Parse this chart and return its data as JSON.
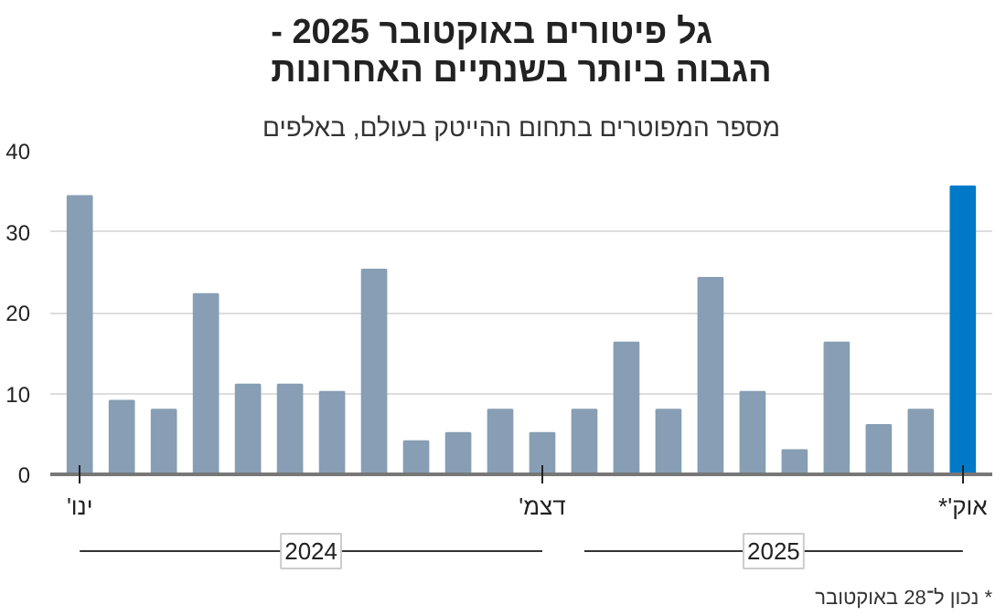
{
  "chart_data": {
    "type": "bar",
    "title": "גל פיטורים באוקטובר 2025 -\nהגבוה ביותר בשנתיים האחרונות",
    "subtitle": "מספר המפוטרים בתחום ההייטק בעולם, באלפים",
    "categories": [
      "ינו'",
      null,
      null,
      null,
      null,
      null,
      null,
      null,
      null,
      null,
      null,
      "דצמ'",
      null,
      null,
      null,
      null,
      null,
      null,
      null,
      null,
      null,
      "אוק'*"
    ],
    "values": [
      34.4,
      9.1,
      8,
      22.3,
      11.1,
      11.1,
      10.2,
      25.3,
      4.1,
      5.1,
      8,
      5.1,
      8,
      16.3,
      8,
      24.3,
      10.2,
      3,
      16.3,
      6.1,
      8,
      35.6
    ],
    "colors": [
      "#879eb4",
      "#879eb4",
      "#879eb4",
      "#879eb4",
      "#879eb4",
      "#879eb4",
      "#879eb4",
      "#879eb4",
      "#879eb4",
      "#879eb4",
      "#879eb4",
      "#879eb4",
      "#879eb4",
      "#879eb4",
      "#879eb4",
      "#879eb4",
      "#879eb4",
      "#879eb4",
      "#879eb4",
      "#879eb4",
      "#879eb4",
      "#0079c8"
    ],
    "ylim": [
      0,
      40
    ],
    "yticks": [
      0,
      10,
      20,
      30,
      40
    ],
    "grid": "y",
    "annotations": [
      "2024",
      "2025",
      "* נכון ל־28 באוקטובר"
    ]
  }
}
